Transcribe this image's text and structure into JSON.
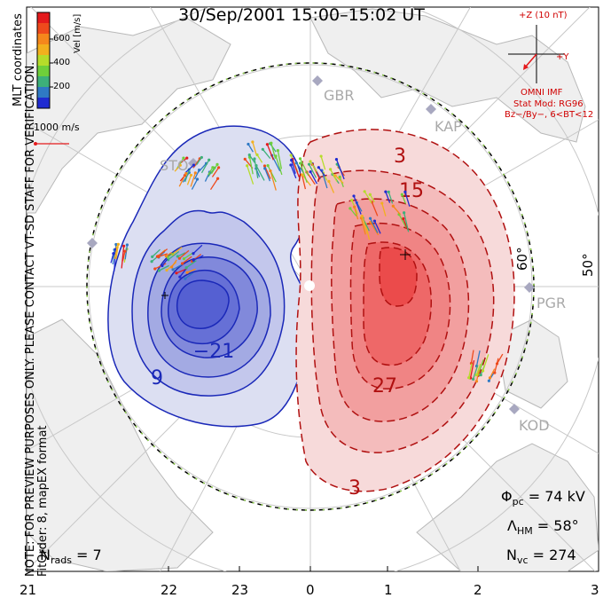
{
  "title": "30/Sep/2001  15:00–15:02 UT",
  "side_text": {
    "line1": "MLT coordinates",
    "line2": "NOTE: FOR PREVIEW PURPOSES ONLY. PLEASE CONTACT VT-SD STAFF FOR VERIFICATION.",
    "line3": "FitOrder: 8,  mapEX format"
  },
  "colorbar": {
    "title": "Vel [m/s]",
    "ticks": [
      "600",
      "400",
      "200"
    ],
    "colors": [
      "#1f2bd1",
      "#2f79c4",
      "#3db07a",
      "#6fcf3a",
      "#b6dc2a",
      "#f2b01e",
      "#f5871c",
      "#ee4a1c",
      "#e41a1c"
    ]
  },
  "vector_scale": "1000 m/s",
  "imf": {
    "z_label": "+Z (10 nT)",
    "y_label": "+Y",
    "line1": "OMNI IMF",
    "line2": "Stat Mod: RG96",
    "line3": "Bz−/By−, 6<BT<12"
  },
  "latitude_labels": [
    "60°",
    "50°"
  ],
  "radars": [
    "GBR",
    "KAP",
    "STO",
    "PGR",
    "KOD"
  ],
  "contour_labels": [
    "3",
    "15",
    "27",
    "3",
    "9",
    "−21"
  ],
  "stats": {
    "phi_pc": "Φpc = 74 kV",
    "lambda_hm": "ΛHM = 58°",
    "n_vc": "Nvc = 274",
    "n_rads": "Nrads = 7"
  },
  "stats_parts": {
    "phi_sym": "Φ",
    "phi_sub": "pc",
    "phi_val": " = 74 kV",
    "lam_sym": "Λ",
    "lam_sub": "HM",
    "lam_val": " = 58°",
    "nvc_sym": "N",
    "nvc_sub": "vc",
    "nvc_val": " = 274",
    "nr_sym": "N",
    "nr_sub": "rads",
    "nr_val": " = 7"
  },
  "mlt_axis": [
    "21",
    "22",
    "23",
    "0",
    "1",
    "2",
    "3"
  ]
}
